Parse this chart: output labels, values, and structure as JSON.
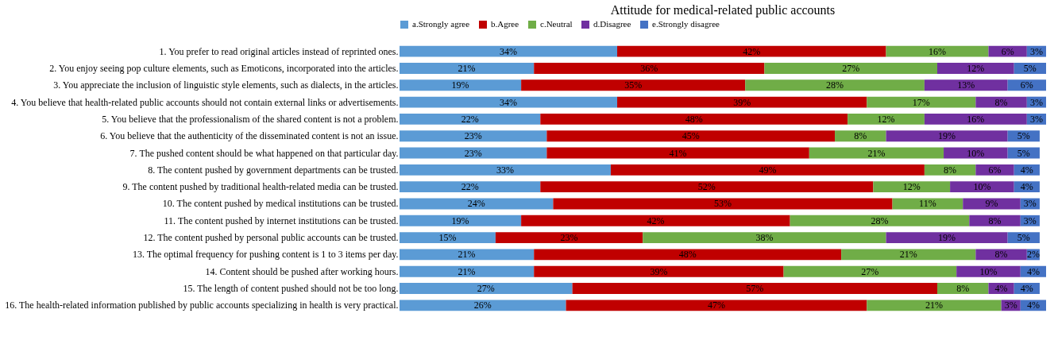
{
  "chart_data": {
    "type": "bar",
    "orientation": "horizontal",
    "stacked": true,
    "legend": "top",
    "grid": false,
    "title": "Attitude for medical-related public accounts",
    "categories": [
      "1. You prefer to read original articles instead of reprinted ones.",
      "2. You enjoy seeing pop culture elements, such as Emoticons, incorporated into the articles.",
      "3. You appreciate the inclusion of linguistic style elements, such as dialects, in the articles.",
      "4. You believe that health-related public accounts should not contain external links or advertisements.",
      "5. You believe that the professionalism of the shared content is not a problem.",
      "6. You believe that the authenticity of the disseminated content is not an issue.",
      "7. The pushed content should be what happened on that particular day.",
      "8. The content pushed by government departments can be trusted.",
      "9. The content pushed by traditional health-related media can be trusted.",
      "10. The content pushed by medical institutions can be trusted.",
      "11. The content pushed by internet institutions can be trusted.",
      "12. The content pushed by personal public accounts can be trusted.",
      "13. The optimal frequency for pushing content is 1 to 3 items per day.",
      "14. Content should be pushed after working hours.",
      "15. The length of content pushed should not be too long.",
      "16. The health-related information published by public accounts specializing in health is very practical."
    ],
    "series": [
      {
        "name": "a.Strongly agree",
        "color": "#5b9bd5",
        "values": [
          34,
          21,
          19,
          34,
          22,
          23,
          23,
          33,
          22,
          24,
          19,
          15,
          21,
          21,
          27,
          26
        ],
        "value_labels": [
          "34%",
          "21%",
          "19%",
          "34%",
          "22%",
          "23%",
          "23%",
          "33%",
          "22%",
          "24%",
          "19%",
          "15%",
          "21%",
          "21%",
          "27%",
          "26%"
        ]
      },
      {
        "name": "b.Agree",
        "color": "#c00000",
        "values": [
          42,
          36,
          35,
          39,
          48,
          45,
          41,
          49,
          52,
          53,
          42,
          23,
          48,
          39,
          57,
          47
        ],
        "value_labels": [
          "42%",
          "36%",
          "35%",
          "39%",
          "48%",
          "45%",
          "41%",
          "49%",
          "52%",
          "53%",
          "42%",
          "23%",
          "48%",
          "39%",
          "57%",
          "47%"
        ]
      },
      {
        "name": "c.Neutral",
        "color": "#70ad47",
        "values": [
          16,
          27,
          28,
          17,
          12,
          8,
          21,
          8,
          12,
          11,
          28,
          38,
          21,
          27,
          8,
          21
        ],
        "value_labels": [
          "16%",
          "27%",
          "28%",
          "17%",
          "12%",
          "8%",
          "21%",
          "8%",
          "12%",
          "11%",
          "28%",
          "38%",
          "21%",
          "27%",
          "8%",
          "21%"
        ]
      },
      {
        "name": "d.Disagree",
        "color": "#7030a0",
        "values": [
          6,
          12,
          13,
          8,
          16,
          19,
          10,
          6,
          10,
          9,
          8,
          19,
          8,
          10,
          4,
          3
        ],
        "value_labels": [
          "6%",
          "12%",
          "13%",
          "8%",
          "16%",
          "19%",
          "10%",
          "6%",
          "10%",
          "9%",
          "8%",
          "19%",
          "8%",
          "10%",
          "4%",
          "3%"
        ]
      },
      {
        "name": "e.Strongly disagree",
        "color": "#4472c4",
        "values": [
          3,
          5,
          6,
          3,
          3,
          5,
          5,
          4,
          4,
          3,
          3,
          5,
          2,
          4,
          4,
          4
        ],
        "value_labels": [
          "3%",
          "5%",
          "6%",
          "3%",
          "3%",
          "5%",
          "5%",
          "4%",
          "4%",
          "3%",
          "3%",
          "5%",
          "2%",
          "4%",
          "4%",
          "4%"
        ]
      }
    ]
  }
}
